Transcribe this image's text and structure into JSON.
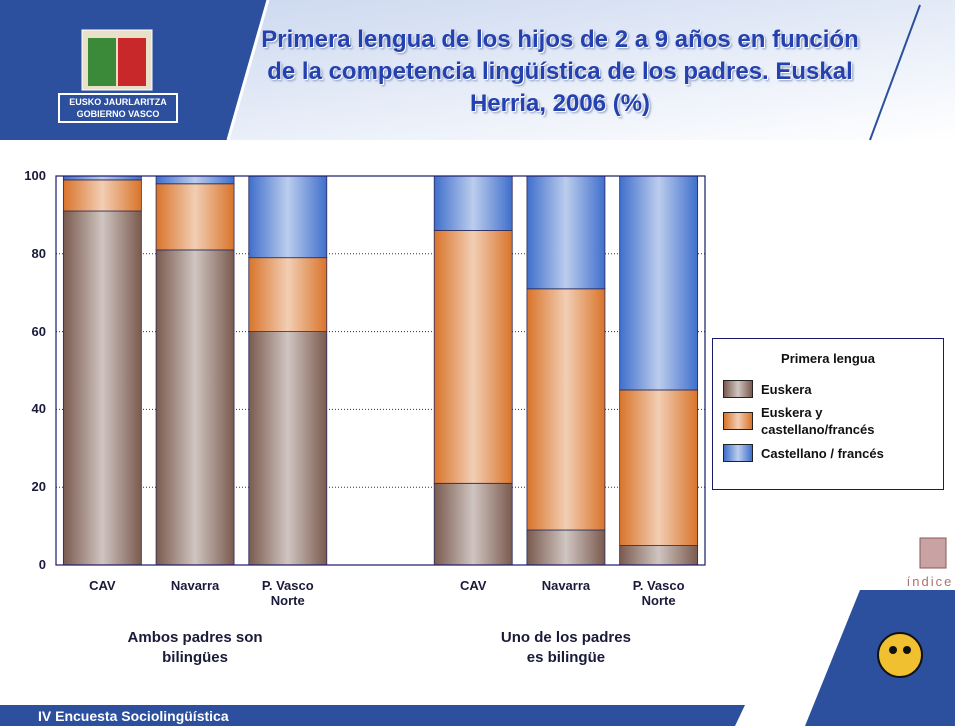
{
  "header": {
    "logo_lines": [
      "EUSKO JAURLARITZA",
      "GOBIERNO VASCO"
    ]
  },
  "chart_data": {
    "type": "stacked_bar",
    "title": "Primera lengua de los hijos de 2 a 9 años en función de la competencia lingüística de los padres. Euskal Herria, 2006 (%)",
    "categories": [
      "CAV",
      "Navarra",
      "P. Vasco Norte",
      null,
      "CAV",
      "Navarra",
      "P. Vasco Norte"
    ],
    "groups": [
      {
        "label": "Ambos padres son bilingües",
        "span": [
          0,
          2
        ]
      },
      {
        "label": "Uno de los padres es bilingüe",
        "span": [
          4,
          6
        ]
      }
    ],
    "series": [
      {
        "name": "Euskera",
        "color": "#7a5a4e",
        "values": [
          91,
          81,
          60,
          null,
          21,
          9,
          5
        ]
      },
      {
        "name": "Euskera y castellano/francés",
        "color": "#d9742a",
        "values": [
          8,
          17,
          19,
          null,
          65,
          62,
          40
        ]
      },
      {
        "name": "Castellano / francés",
        "color": "#3f6fcc",
        "values": [
          1,
          2,
          21,
          null,
          14,
          29,
          55
        ]
      }
    ],
    "legend_title": "Primera lengua",
    "legend_position": "right",
    "ylim": [
      0,
      100
    ],
    "yticks": [
      0,
      20,
      40,
      60,
      80,
      100
    ],
    "grid": true
  },
  "index_label": "índice",
  "footer": "IV Encuesta Sociolingüística"
}
